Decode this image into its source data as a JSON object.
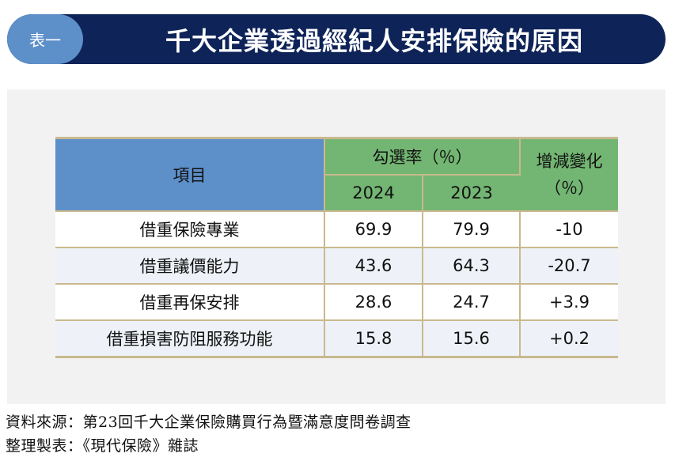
{
  "title": {
    "badge": "表一",
    "text": "千大企業透過經紀人安排保險的原因"
  },
  "table": {
    "header_item": "項目",
    "header_rate": "勾選率（％）",
    "header_change": "增減變化（％）",
    "header_change_line1": "增減變化",
    "header_change_line2": "（％）",
    "year_2024": "2024",
    "year_2023": "2023",
    "rows": [
      {
        "item": "借重保險專業",
        "v2024": "69.9",
        "v2023": "79.9",
        "change": "-10"
      },
      {
        "item": "借重議價能力",
        "v2024": "43.6",
        "v2023": "64.3",
        "change": "-20.7"
      },
      {
        "item": "借重再保安排",
        "v2024": "28.6",
        "v2023": "24.7",
        "change": "+3.9"
      },
      {
        "item": "借重損害防阻服務功能",
        "v2024": "15.8",
        "v2023": "15.6",
        "change": "+0.2"
      }
    ]
  },
  "footer": {
    "source": "資料來源：第23回千大企業保險購買行為暨滿意度問卷調查",
    "compiled": "整理製表：《現代保險》雜誌"
  },
  "colors": {
    "title_bg": "#0e2358",
    "badge_bg": "#5d8fc9",
    "item_header_bg": "#5d8fc9",
    "green_header_bg": "#73b673",
    "border": "#c9b98e"
  }
}
